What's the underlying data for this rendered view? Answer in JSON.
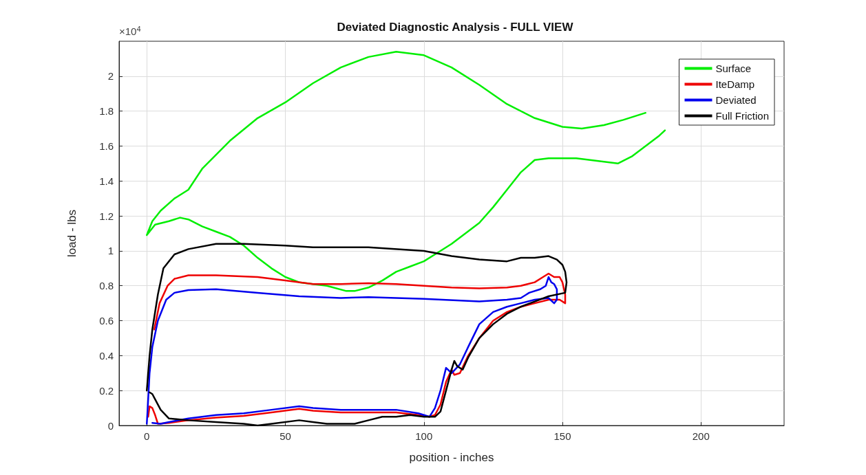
{
  "chart_data": {
    "type": "line",
    "title": "Deviated Diagnostic Analysis - FULL VIEW",
    "xlabel": "position - inches",
    "ylabel": "load - lbs",
    "annotations": [
      "×10$^{4}$"
    ],
    "xlim": [
      -10,
      230
    ],
    "xticks": [
      0,
      50,
      100,
      150,
      200
    ],
    "ylim": [
      0,
      2.2
    ],
    "yticks": [
      0,
      0.2,
      0.4,
      0.6,
      0.8,
      1,
      1.2,
      1.4,
      1.6,
      1.8,
      2
    ],
    "grid": true,
    "legend": "top right",
    "marker": "none",
    "line_style": "solid",
    "series": [
      {
        "name": "Surface",
        "color": "#00ee00",
        "x": [
          0,
          2,
          5,
          10,
          15,
          20,
          30,
          40,
          50,
          60,
          70,
          80,
          90,
          100,
          110,
          120,
          130,
          140,
          150,
          157,
          165,
          172,
          180,
          184,
          187,
          185,
          180,
          175,
          170,
          165,
          155,
          145,
          140,
          135,
          130,
          125,
          120,
          115,
          110,
          105,
          100,
          95,
          90,
          85,
          80,
          75,
          72,
          65,
          55,
          50,
          45,
          40,
          35,
          30,
          25,
          20,
          15,
          12,
          8,
          3,
          0
        ],
        "values": [
          1.09,
          1.17,
          1.23,
          1.3,
          1.35,
          1.47,
          1.63,
          1.76,
          1.85,
          1.96,
          2.05,
          2.11,
          2.14,
          2.12,
          2.05,
          1.95,
          1.84,
          1.76,
          1.71,
          1.7,
          1.72,
          1.75,
          1.79,
          null,
          1.69,
          1.66,
          1.6,
          1.54,
          1.5,
          1.51,
          1.53,
          1.53,
          1.52,
          1.45,
          1.35,
          1.25,
          1.16,
          1.1,
          1.04,
          0.99,
          0.94,
          0.91,
          0.88,
          0.83,
          0.79,
          0.77,
          0.77,
          0.8,
          0.82,
          0.85,
          0.9,
          0.96,
          1.03,
          1.08,
          1.11,
          1.14,
          1.18,
          1.19,
          1.17,
          1.15,
          1.09
        ]
      },
      {
        "name": "IteDamp",
        "color": "#ee0000",
        "x": [
          2.7,
          4.6,
          7.5,
          10,
          15,
          25,
          40,
          50,
          60,
          70,
          80,
          90,
          100,
          110,
          120,
          130,
          135,
          140,
          143,
          145,
          147,
          149,
          150,
          151,
          151,
          149,
          145,
          140,
          135,
          130,
          125,
          120,
          116,
          113,
          111,
          110,
          108,
          106,
          104,
          102,
          98,
          90,
          80,
          70,
          60,
          55,
          45,
          35,
          25,
          15,
          8,
          4,
          3,
          2,
          1,
          0.5
        ],
        "values": [
          0.55,
          0.7,
          0.8,
          0.84,
          0.86,
          0.86,
          0.85,
          0.83,
          0.81,
          0.81,
          0.815,
          0.81,
          0.8,
          0.79,
          0.785,
          0.79,
          0.8,
          0.82,
          0.85,
          0.87,
          0.85,
          0.85,
          0.82,
          0.75,
          0.7,
          0.72,
          0.72,
          0.7,
          0.68,
          0.65,
          0.6,
          0.5,
          0.4,
          0.3,
          0.29,
          0.32,
          0.25,
          0.12,
          0.06,
          0.05,
          0.06,
          0.075,
          0.075,
          0.075,
          0.085,
          0.095,
          0.075,
          0.055,
          0.045,
          0.03,
          0.015,
          0.01,
          0.06,
          0.1,
          0.11,
          0.05
        ]
      },
      {
        "name": "Deviated",
        "color": "#0000ee",
        "x": [
          0,
          0.5,
          1,
          2,
          4,
          7,
          10,
          15,
          25,
          40,
          55,
          70,
          80,
          100,
          120,
          130,
          135,
          138,
          142,
          144,
          145,
          146,
          147,
          148,
          148,
          147,
          145,
          140,
          135,
          130,
          125,
          120,
          116,
          113,
          110,
          108,
          106,
          104,
          102,
          98,
          90,
          80,
          70,
          60,
          55,
          45,
          35,
          25,
          15,
          8,
          5,
          2
        ],
        "values": [
          0.01,
          0.15,
          0.3,
          0.45,
          0.6,
          0.72,
          0.76,
          0.775,
          0.78,
          0.76,
          0.74,
          0.73,
          0.735,
          0.725,
          0.71,
          0.72,
          0.73,
          0.76,
          0.78,
          0.8,
          0.85,
          0.82,
          0.81,
          0.78,
          0.72,
          0.7,
          0.73,
          0.72,
          0.7,
          0.68,
          0.65,
          0.58,
          0.45,
          0.35,
          0.3,
          0.33,
          0.2,
          0.1,
          0.05,
          0.07,
          0.09,
          0.09,
          0.09,
          0.1,
          0.11,
          0.09,
          0.07,
          0.06,
          0.04,
          0.02,
          0.01,
          0.015
        ]
      },
      {
        "name": "Full Friction",
        "color": "#000000",
        "x": [
          0,
          1,
          2,
          4,
          6,
          10,
          15,
          25,
          35,
          50,
          60,
          80,
          100,
          110,
          120,
          130,
          135,
          140,
          145,
          148,
          150,
          151,
          151.5,
          151,
          145,
          140,
          135,
          130,
          125,
          120,
          116,
          114,
          112,
          111,
          110,
          108,
          106,
          104,
          100,
          95,
          90,
          85,
          80,
          75,
          65,
          60,
          55,
          45,
          40,
          35,
          25,
          15,
          8,
          5,
          3,
          2,
          1
        ],
        "values": [
          0.2,
          0.4,
          0.55,
          0.75,
          0.9,
          0.98,
          1.01,
          1.04,
          1.04,
          1.03,
          1.02,
          1.02,
          1,
          0.97,
          0.95,
          0.94,
          0.96,
          0.96,
          0.97,
          0.95,
          0.92,
          0.88,
          0.82,
          0.76,
          0.74,
          0.71,
          0.68,
          0.64,
          0.58,
          0.5,
          0.39,
          0.32,
          0.34,
          0.37,
          0.32,
          0.2,
          0.08,
          0.05,
          0.05,
          0.06,
          0.05,
          0.05,
          0.03,
          0.01,
          0.01,
          0.02,
          0.03,
          0.01,
          0,
          0.01,
          0.02,
          0.03,
          0.04,
          0.09,
          0.15,
          0.18,
          0.19
        ]
      }
    ]
  }
}
